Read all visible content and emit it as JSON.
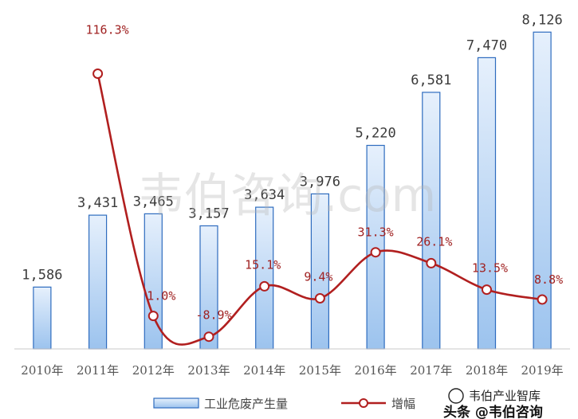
{
  "chart_data": {
    "type": "bar",
    "categories": [
      "2010年",
      "2011年",
      "2012年",
      "2013年",
      "2014年",
      "2015年",
      "2016年",
      "2017年",
      "2018年",
      "2019年"
    ],
    "series": [
      {
        "name": "工业危废产生量",
        "kind": "bar",
        "values": [
          1586,
          3431,
          3465,
          3157,
          3634,
          3976,
          5220,
          6581,
          7470,
          8126
        ],
        "labels": [
          "1,586",
          "3,431",
          "3,465",
          "3,157",
          "3,634",
          "3,976",
          "5,220",
          "6,581",
          "7,470",
          "8,126"
        ]
      },
      {
        "name": "增幅",
        "kind": "line",
        "axis": "secondary",
        "values": [
          null,
          116.3,
          1.0,
          -8.9,
          15.1,
          9.4,
          31.3,
          26.1,
          13.5,
          8.8
        ],
        "labels": [
          "",
          "116.3%",
          "1.0%",
          "-8.9%",
          "15.1%",
          "9.4%",
          "31.3%",
          "26.1%",
          "13.5%",
          "8.8%"
        ]
      }
    ],
    "ylim": [
      0,
      8500
    ],
    "y2lim": [
      -20,
      140
    ],
    "grid": false,
    "legend_position": "bottom",
    "colors": {
      "bar_fill_top": "#e6f0fc",
      "bar_fill_bottom": "#9cc3ee",
      "bar_stroke": "#2e6cbf",
      "line": "#b11f1f",
      "marker_fill": "#ffffff"
    }
  },
  "watermark": {
    "center": "韦伯咨询.com",
    "bottom_right": "头条 @韦伯咨询",
    "bottom_right_sub": "韦伯产业智库"
  }
}
